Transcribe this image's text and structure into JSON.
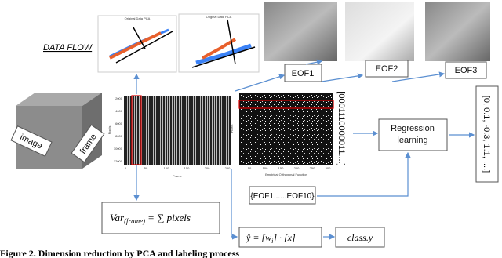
{
  "header": {
    "title": "DATA FLOW"
  },
  "scatter_plots": [
    {
      "title": "Original Data PCA"
    },
    {
      "title": "Original Data PCA"
    }
  ],
  "eof_labels": [
    "EOF1",
    "EOF2",
    "EOF3"
  ],
  "cube_labels": [
    "image",
    "frame"
  ],
  "left_plot": {
    "y_label": "Pixels",
    "x_label": "Frame",
    "yticks": [
      "2000",
      "4000",
      "6000",
      "8000",
      "10000",
      "12000"
    ],
    "xticks": [
      "0",
      "50",
      "100",
      "150",
      "200",
      "250"
    ]
  },
  "right_plot": {
    "y_label": "Pixels",
    "x_label": "Empirical Orthogonal Function",
    "xticks": [
      "50",
      "100",
      "150",
      "200",
      "250",
      "300"
    ]
  },
  "binary_vector": "[0001110000011....]",
  "regression": "Regression learning",
  "output_vector": "[0, 0.1, -0.3, 1.1, ....]",
  "eof_set": "{EOF1......EOF10}",
  "variance_formula": {
    "lhs": "Var",
    "subscript": "(frame)",
    "rhs": "= ∑ pixels"
  },
  "prediction_formula": {
    "text": "ŷ = [w",
    "subscript": "i",
    "rest": "] · [x]"
  },
  "class_label": "class.y",
  "caption": "Figure 2. Dimension reduction by PCA and labeling process"
}
